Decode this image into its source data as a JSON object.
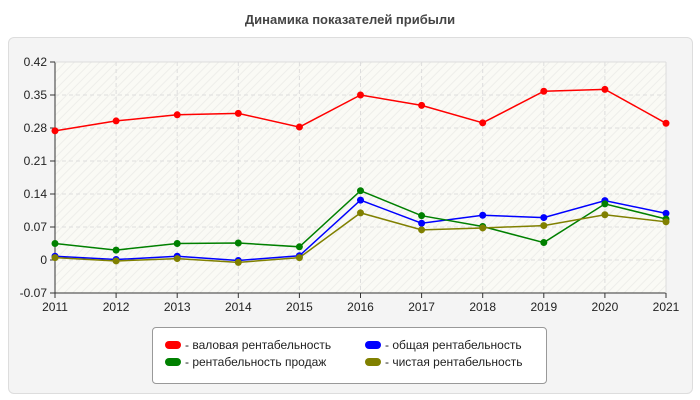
{
  "chart_data": {
    "type": "line",
    "title": "Динамика показателей прибыли",
    "x": [
      2011,
      2012,
      2013,
      2014,
      2015,
      2016,
      2017,
      2018,
      2019,
      2020,
      2021
    ],
    "ylim": [
      -0.07,
      0.42
    ],
    "yticks": [
      "-0.07",
      "0",
      "0.07",
      "0.14",
      "0.21",
      "0.28",
      "0.35",
      "0.42"
    ],
    "grid": true,
    "legend_position": "bottom",
    "series": [
      {
        "name": "- валовая рентабельность",
        "color": "#ff0000",
        "values": [
          0.274,
          0.295,
          0.308,
          0.311,
          0.282,
          0.35,
          0.328,
          0.291,
          0.358,
          0.362,
          0.29
        ]
      },
      {
        "name": "- общая рентабельность",
        "color": "#0000ff",
        "values": [
          0.008,
          0.001,
          0.008,
          -0.001,
          0.009,
          0.127,
          0.078,
          0.095,
          0.09,
          0.126,
          0.099
        ]
      },
      {
        "name": "- рентабельность продаж",
        "color": "#008000",
        "values": [
          0.035,
          0.021,
          0.035,
          0.036,
          0.028,
          0.147,
          0.094,
          0.071,
          0.037,
          0.119,
          0.087
        ]
      },
      {
        "name": "- чистая рентабельность",
        "color": "#808000",
        "values": [
          0.005,
          -0.002,
          0.003,
          -0.005,
          0.005,
          0.1,
          0.064,
          0.068,
          0.073,
          0.096,
          0.081
        ]
      }
    ]
  }
}
